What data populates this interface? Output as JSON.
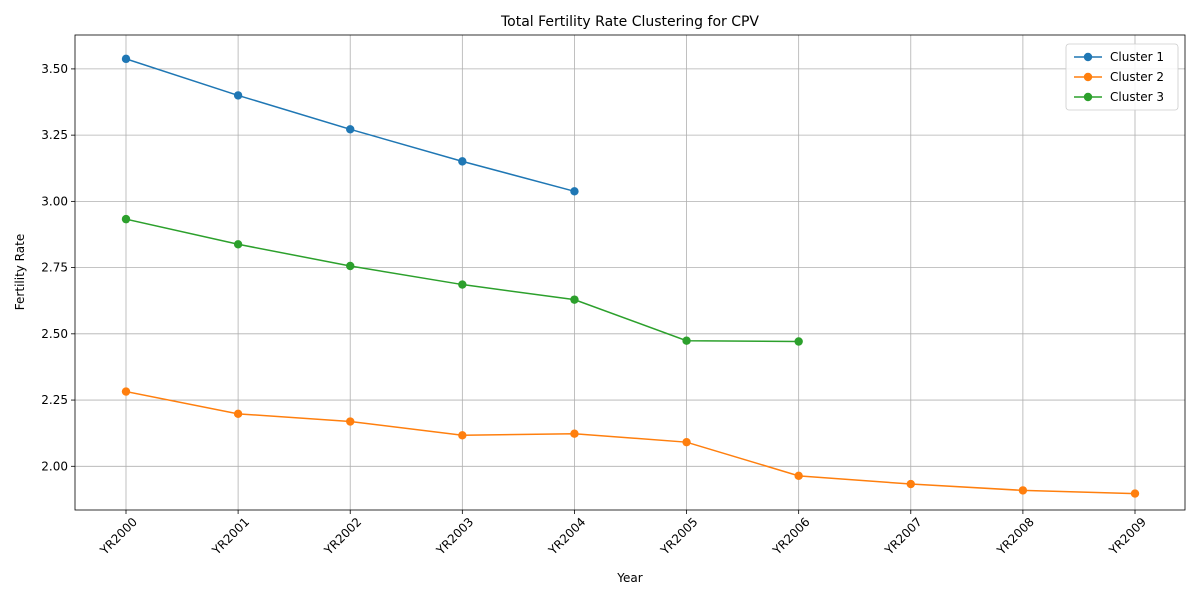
{
  "chart_data": {
    "type": "line",
    "title": "Total Fertility Rate Clustering for CPV",
    "xlabel": "Year",
    "ylabel": "Fertility Rate",
    "categories": [
      "YR2000",
      "YR2001",
      "YR2002",
      "YR2003",
      "YR2004",
      "YR2005",
      "YR2006",
      "YR2007",
      "YR2008",
      "YR2009"
    ],
    "yticks": [
      "2.00",
      "2.25",
      "2.50",
      "2.75",
      "3.00",
      "3.25",
      "3.50"
    ],
    "ylim": [
      1.835,
      3.628
    ],
    "grid": true,
    "legend_position": "top-right",
    "series": [
      {
        "name": "Cluster 1",
        "color": "#1f77b4",
        "values": [
          3.538,
          3.4,
          3.272,
          3.151,
          3.038,
          null,
          null,
          null,
          null,
          null
        ]
      },
      {
        "name": "Cluster 2",
        "color": "#ff7f0e",
        "values": [
          2.282,
          2.198,
          2.169,
          2.117,
          2.123,
          2.091,
          1.964,
          1.933,
          1.909,
          1.897
        ]
      },
      {
        "name": "Cluster 3",
        "color": "#2ca02c",
        "values": [
          2.933,
          2.838,
          2.756,
          2.686,
          2.629,
          2.474,
          2.471,
          null,
          null,
          null
        ]
      }
    ]
  }
}
